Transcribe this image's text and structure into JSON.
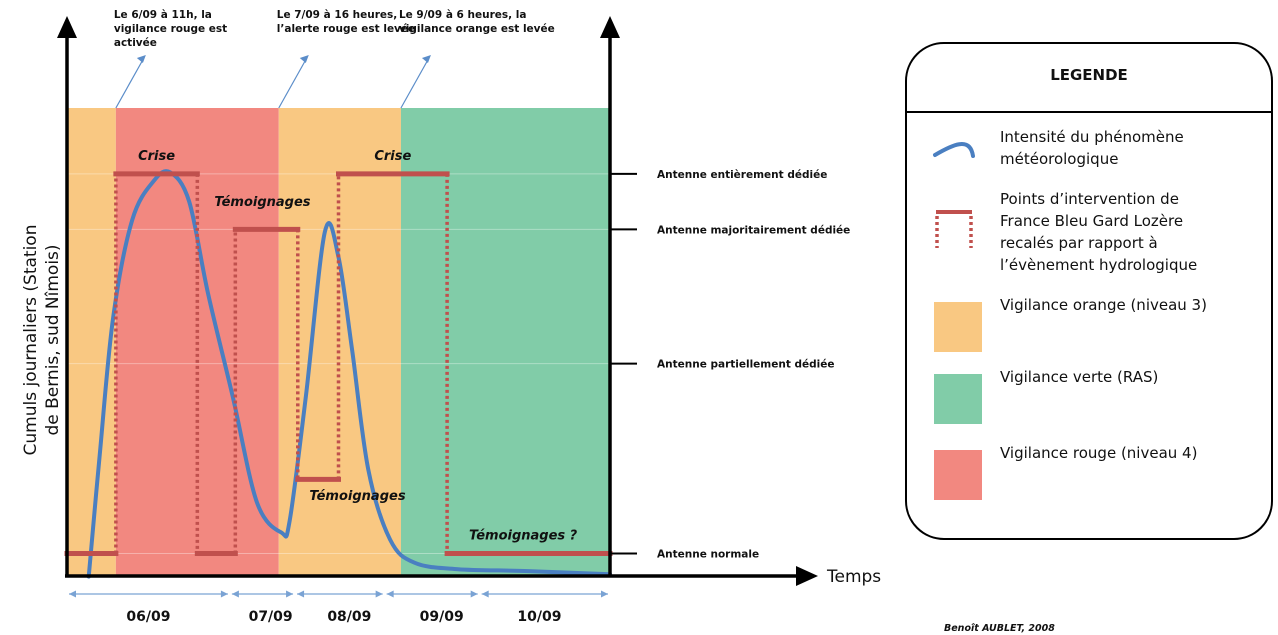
{
  "chart_data": {
    "type": "line",
    "title": "",
    "ylabel_lines": [
      "Cumuls journaliers (Station",
      "de Bernis, sud Nîmois)"
    ],
    "xlabel": "Temps",
    "x_domain": [
      0,
      10
    ],
    "y_domain": [
      0,
      100
    ],
    "date_labels": [
      {
        "label": "06/09",
        "x": 1.5
      },
      {
        "label": "07/09",
        "x": 3.75
      },
      {
        "label": "08/09",
        "x": 5.2
      },
      {
        "label": "09/09",
        "x": 6.9
      },
      {
        "label": "10/09",
        "x": 8.7
      }
    ],
    "date_spans": [
      [
        0,
        3
      ],
      [
        3,
        4.2
      ],
      [
        4.2,
        5.85
      ],
      [
        5.85,
        7.6
      ],
      [
        7.6,
        10
      ]
    ],
    "vigilance_bands": [
      {
        "level": "orange",
        "start": 0,
        "end": 0.9,
        "color": "#f9c882"
      },
      {
        "level": "rouge",
        "start": 0.9,
        "end": 3.9,
        "color": "#f28880"
      },
      {
        "level": "orange",
        "start": 3.9,
        "end": 6.15,
        "color": "#f9c882"
      },
      {
        "level": "verte",
        "start": 6.15,
        "end": 10,
        "color": "#81cca8"
      }
    ],
    "levels": [
      {
        "name": "Antenne entièrement dédiée",
        "y": 86
      },
      {
        "name": "Antenne majoritairement dédiée",
        "y": 74
      },
      {
        "name": "Antenne partiellement dédiée",
        "y": 45
      },
      {
        "name": "Antenne normale",
        "y": 4
      }
    ],
    "intensity_curve": [
      [
        0.4,
        -1
      ],
      [
        0.6,
        25
      ],
      [
        0.85,
        55
      ],
      [
        1.2,
        76
      ],
      [
        1.6,
        84.5
      ],
      [
        1.9,
        86.3
      ],
      [
        2.25,
        80
      ],
      [
        2.6,
        60
      ],
      [
        3.05,
        38
      ],
      [
        3.5,
        15
      ],
      [
        3.95,
        8.5
      ],
      [
        4.1,
        11
      ],
      [
        4.4,
        38
      ],
      [
        4.75,
        73.5
      ],
      [
        5.0,
        68
      ],
      [
        5.25,
        48
      ],
      [
        5.55,
        22
      ],
      [
        5.95,
        7
      ],
      [
        6.4,
        2
      ],
      [
        7.2,
        0.6
      ],
      [
        8.5,
        0.2
      ],
      [
        10,
        -0.5
      ]
    ],
    "intervention_path": [
      [
        0,
        4
      ],
      [
        0.9,
        4
      ],
      [
        0.9,
        86
      ],
      [
        2.4,
        86
      ],
      [
        2.4,
        4
      ],
      [
        3.1,
        4
      ],
      [
        3.1,
        74
      ],
      [
        4.25,
        74
      ],
      [
        4.25,
        20
      ],
      [
        5.0,
        20
      ],
      [
        5.0,
        86
      ],
      [
        7.0,
        86
      ],
      [
        7.0,
        4
      ],
      [
        10,
        4
      ]
    ],
    "solid_segments": [
      [
        [
          0,
          4
        ],
        [
          0.9,
          4
        ]
      ],
      [
        [
          0.9,
          86
        ],
        [
          2.4,
          86
        ]
      ],
      [
        [
          2.4,
          4
        ],
        [
          3.1,
          4
        ]
      ],
      [
        [
          3.1,
          74
        ],
        [
          4.25,
          74
        ]
      ],
      [
        [
          4.25,
          20
        ],
        [
          5.0,
          20
        ]
      ],
      [
        [
          5.0,
          86
        ],
        [
          7.0,
          86
        ]
      ],
      [
        [
          7.0,
          4
        ],
        [
          10,
          4
        ]
      ]
    ],
    "phase_labels": [
      {
        "text": "Crise",
        "x": 1.65,
        "y": 89
      },
      {
        "text": "Témoignages",
        "x": 3.6,
        "y": 79
      },
      {
        "text": "Crise",
        "x": 6.0,
        "y": 89
      },
      {
        "text": "Témoignages",
        "x": 5.35,
        "y": 15.5
      },
      {
        "text": "Témoignages ?",
        "x": 8.4,
        "y": 7
      }
    ],
    "event_annotations": [
      {
        "x": 0.9,
        "lines": [
          "Le 6/09 à 11h, la",
          "vigilance rouge est",
          "activée"
        ]
      },
      {
        "x": 3.9,
        "lines": [
          "Le 7/09 à 16 heures,",
          "l’alerte rouge est levée"
        ]
      },
      {
        "x": 6.15,
        "lines": [
          "Le 9/09 à 6 heures, la",
          "vigilance orange est levée"
        ]
      }
    ],
    "legend": {
      "title": "LEGENDE",
      "items": [
        {
          "kind": "curve",
          "lines": [
            "Intensité du phénomène",
            "météorologique"
          ]
        },
        {
          "kind": "intervention",
          "lines": [
            "Points d’intervention de",
            "France Bleu Gard Lozère",
            "recalés par rapport à",
            "l’évènement hydrologique"
          ]
        },
        {
          "kind": "swatch",
          "color": "#f9c882",
          "lines": [
            "Vigilance orange (niveau 3)"
          ]
        },
        {
          "kind": "swatch",
          "color": "#81cca8",
          "lines": [
            "Vigilance verte (RAS)"
          ]
        },
        {
          "kind": "swatch",
          "color": "#f28880",
          "lines": [
            "Vigilance rouge (niveau 4)"
          ]
        }
      ]
    },
    "credit": "Benoît AUBLET, 2008",
    "colors": {
      "curve": "#4a7fc1",
      "intervention": "#c0504d",
      "axis": "#000000",
      "grid": "#ffffff"
    }
  }
}
